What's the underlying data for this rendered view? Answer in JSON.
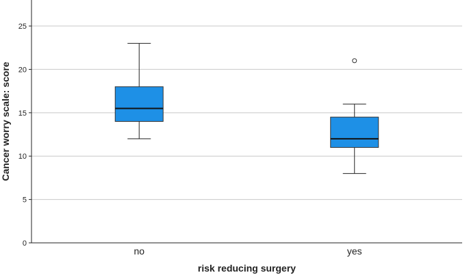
{
  "chart_data": {
    "type": "boxplot",
    "title": "",
    "xlabel": "risk reducing surgery",
    "ylabel": "Cancer worry scale: score",
    "ylim": [
      0,
      28
    ],
    "yticks": [
      0,
      5,
      10,
      15,
      20,
      25
    ],
    "grid": true,
    "categories": [
      "no",
      "yes"
    ],
    "boxes": [
      {
        "category": "no",
        "whisker_low": 12,
        "q1": 14,
        "median": 15.5,
        "q3": 18,
        "whisker_high": 23,
        "outliers": []
      },
      {
        "category": "yes",
        "whisker_low": 8,
        "q1": 11,
        "median": 12,
        "q3": 14.5,
        "whisker_high": 16,
        "outliers": [
          21
        ]
      }
    ],
    "colors": {
      "box_fill": "#1e90e6",
      "grid": "#c8c8c8",
      "axis": "#222222"
    }
  }
}
